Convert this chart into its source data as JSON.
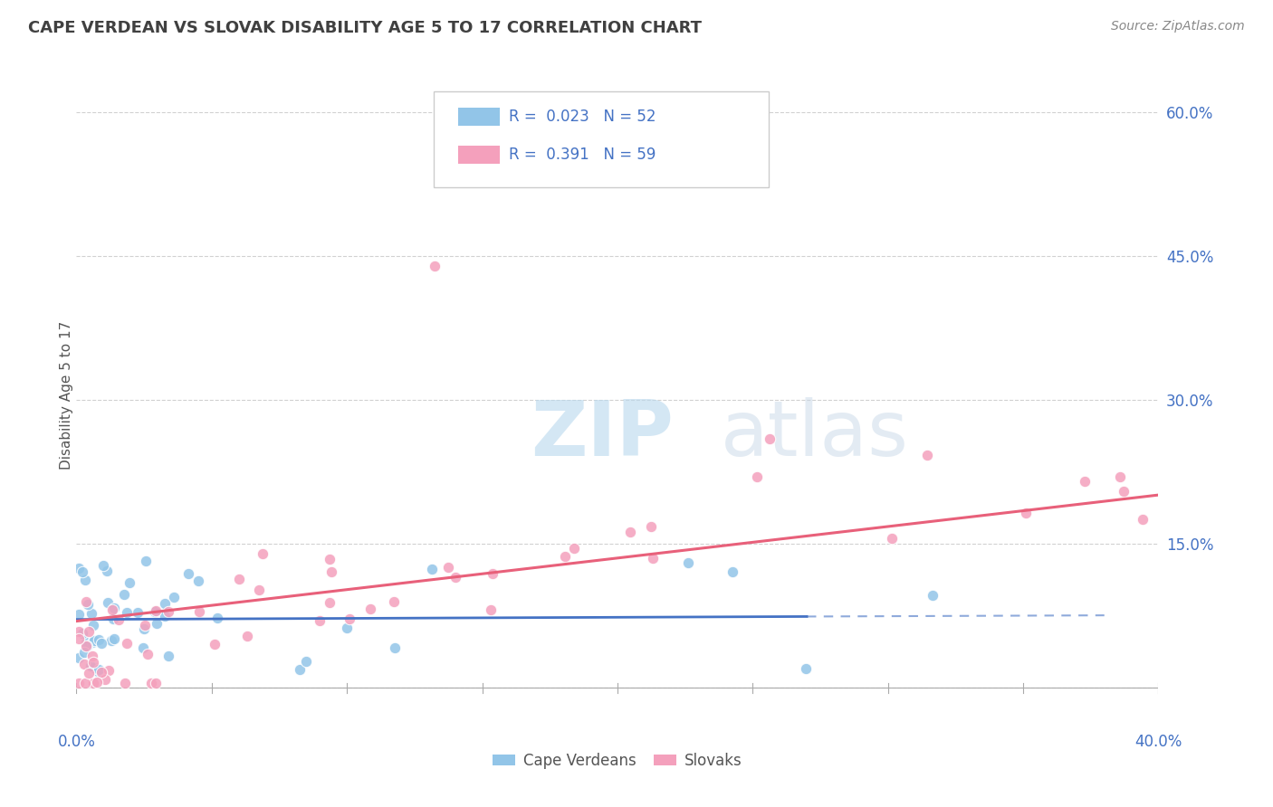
{
  "title": "CAPE VERDEAN VS SLOVAK DISABILITY AGE 5 TO 17 CORRELATION CHART",
  "source_text": "Source: ZipAtlas.com",
  "ylabel": "Disability Age 5 to 17",
  "xlim": [
    0.0,
    0.4
  ],
  "ylim": [
    -0.04,
    0.65
  ],
  "xticks": [
    0.0,
    0.05,
    0.1,
    0.15,
    0.2,
    0.25,
    0.3,
    0.35,
    0.4
  ],
  "xticklabels": [
    "0.0%",
    "",
    "",
    "",
    "",
    "",
    "",
    "",
    "40.0%"
  ],
  "yticks": [
    0.0,
    0.15,
    0.3,
    0.45,
    0.6
  ],
  "yticklabels": [
    "",
    "15.0%",
    "30.0%",
    "45.0%",
    "60.0%"
  ],
  "cape_verdean_R": 0.023,
  "cape_verdean_N": 52,
  "slovak_R": 0.391,
  "slovak_N": 59,
  "blue_color": "#92C5E8",
  "pink_color": "#F4A0BC",
  "blue_line_color": "#4472C4",
  "pink_line_color": "#E8607A",
  "tick_color": "#4472C4",
  "title_color": "#404040",
  "source_color": "#888888",
  "background_color": "#FFFFFF",
  "grid_color": "#CCCCCC",
  "watermark": "ZIPatlas",
  "watermark_color": "#D8E8F0",
  "legend_box_color": "#E8E8E8"
}
